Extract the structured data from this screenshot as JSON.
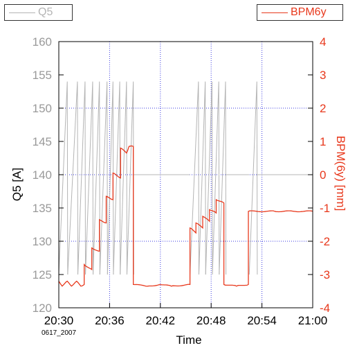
{
  "colors": {
    "q5": "#b4b4b4",
    "bpm": "#e8381c",
    "grid": "#3a3ae0",
    "axis_text": "#000000",
    "left_tick_text": "#999999"
  },
  "legend": {
    "left": {
      "label": "Q5",
      "color": "#b4b4b4"
    },
    "right": {
      "label": "BPM6y",
      "color": "#e8381c"
    }
  },
  "chart_data": {
    "type": "line",
    "xlabel": "Time",
    "ylabel_left": "Q5 [A]",
    "ylabel_right": "BPM(6y) [mm]",
    "annotation": "0617_2007",
    "x_unit": "minutes after 20:30",
    "x_ticks": [
      "20:30",
      "20:36",
      "20:42",
      "20:48",
      "20:54",
      "21:00"
    ],
    "x_tick_values": [
      0,
      6,
      12,
      18,
      24,
      30
    ],
    "xlim": [
      0,
      30
    ],
    "ylim_left": [
      120,
      160
    ],
    "ylim_right": [
      -4,
      4
    ],
    "y_ticks_left": [
      120,
      125,
      130,
      135,
      140,
      145,
      150,
      155,
      160
    ],
    "y_ticks_right": [
      -4,
      -3,
      -2,
      -1,
      0,
      1,
      2,
      3,
      4
    ],
    "grid": true,
    "series": [
      {
        "name": "Q5",
        "axis": "left",
        "ramps": [
          {
            "start": 0.0,
            "peak": 1.0,
            "end": 1.05
          },
          {
            "start": 1.05,
            "peak": 2.2,
            "end": 2.25
          },
          {
            "start": 2.25,
            "peak": 3.1,
            "end": 3.15
          },
          {
            "start": 3.15,
            "peak": 4.0,
            "end": 4.05
          },
          {
            "start": 4.05,
            "peak": 4.8,
            "end": 4.85
          },
          {
            "start": 4.85,
            "peak": 5.7,
            "end": 5.75
          },
          {
            "start": 5.75,
            "peak": 6.4,
            "end": 6.45
          },
          {
            "start": 6.45,
            "peak": 7.2,
            "end": 7.25
          },
          {
            "start": 7.25,
            "peak": 8.0,
            "end": 8.05
          },
          {
            "start": 8.05,
            "peak": 8.8,
            "end": 8.85
          },
          {
            "start": 15.5,
            "peak": 16.5,
            "end": 16.55
          },
          {
            "start": 16.55,
            "peak": 17.3,
            "end": 17.35
          },
          {
            "start": 17.35,
            "peak": 18.1,
            "end": 18.15
          },
          {
            "start": 18.15,
            "peak": 18.9,
            "end": 18.95
          },
          {
            "start": 18.95,
            "peak": 19.7,
            "end": 19.75
          },
          {
            "start": 22.5,
            "peak": 23.4,
            "end": 23.45
          }
        ],
        "low": 125,
        "peak": 154,
        "flat_segments": [
          {
            "x0": 8.85,
            "x1": 15.5,
            "y": 140
          },
          {
            "x0": 19.75,
            "x1": 22.5,
            "y": 140
          },
          {
            "x0": 23.45,
            "x1": 30,
            "y": 140
          }
        ]
      },
      {
        "name": "BPM6y",
        "axis": "right",
        "points": [
          [
            0.0,
            -3.2
          ],
          [
            0.4,
            -3.35
          ],
          [
            1.0,
            -3.2
          ],
          [
            1.5,
            -3.35
          ],
          [
            2.1,
            -3.2
          ],
          [
            2.6,
            -3.35
          ],
          [
            3.0,
            -3.3
          ],
          [
            3.0,
            -2.7
          ],
          [
            3.9,
            -2.85
          ],
          [
            3.9,
            -2.2
          ],
          [
            4.8,
            -2.3
          ],
          [
            4.8,
            -1.35
          ],
          [
            5.6,
            -1.45
          ],
          [
            5.6,
            -0.65
          ],
          [
            6.4,
            -0.75
          ],
          [
            6.4,
            0.05
          ],
          [
            7.3,
            -0.1
          ],
          [
            7.3,
            0.8
          ],
          [
            8.0,
            0.65
          ],
          [
            8.3,
            0.85
          ],
          [
            8.8,
            0.85
          ],
          [
            8.8,
            -3.3
          ],
          [
            10.5,
            -3.35
          ],
          [
            12.0,
            -3.3
          ],
          [
            13.3,
            -3.35
          ],
          [
            15.5,
            -3.3
          ],
          [
            15.5,
            -1.6
          ],
          [
            16.2,
            -1.75
          ],
          [
            16.2,
            -1.45
          ],
          [
            17.0,
            -1.6
          ],
          [
            17.0,
            -1.25
          ],
          [
            17.8,
            -1.4
          ],
          [
            17.8,
            -1.05
          ],
          [
            18.6,
            -1.15
          ],
          [
            18.6,
            -0.75
          ],
          [
            19.5,
            -0.85
          ],
          [
            19.5,
            -3.3
          ],
          [
            21.0,
            -3.35
          ],
          [
            22.4,
            -3.3
          ],
          [
            22.4,
            -1.1
          ],
          [
            25.5,
            -1.1
          ],
          [
            30.0,
            -1.1
          ]
        ]
      }
    ]
  }
}
